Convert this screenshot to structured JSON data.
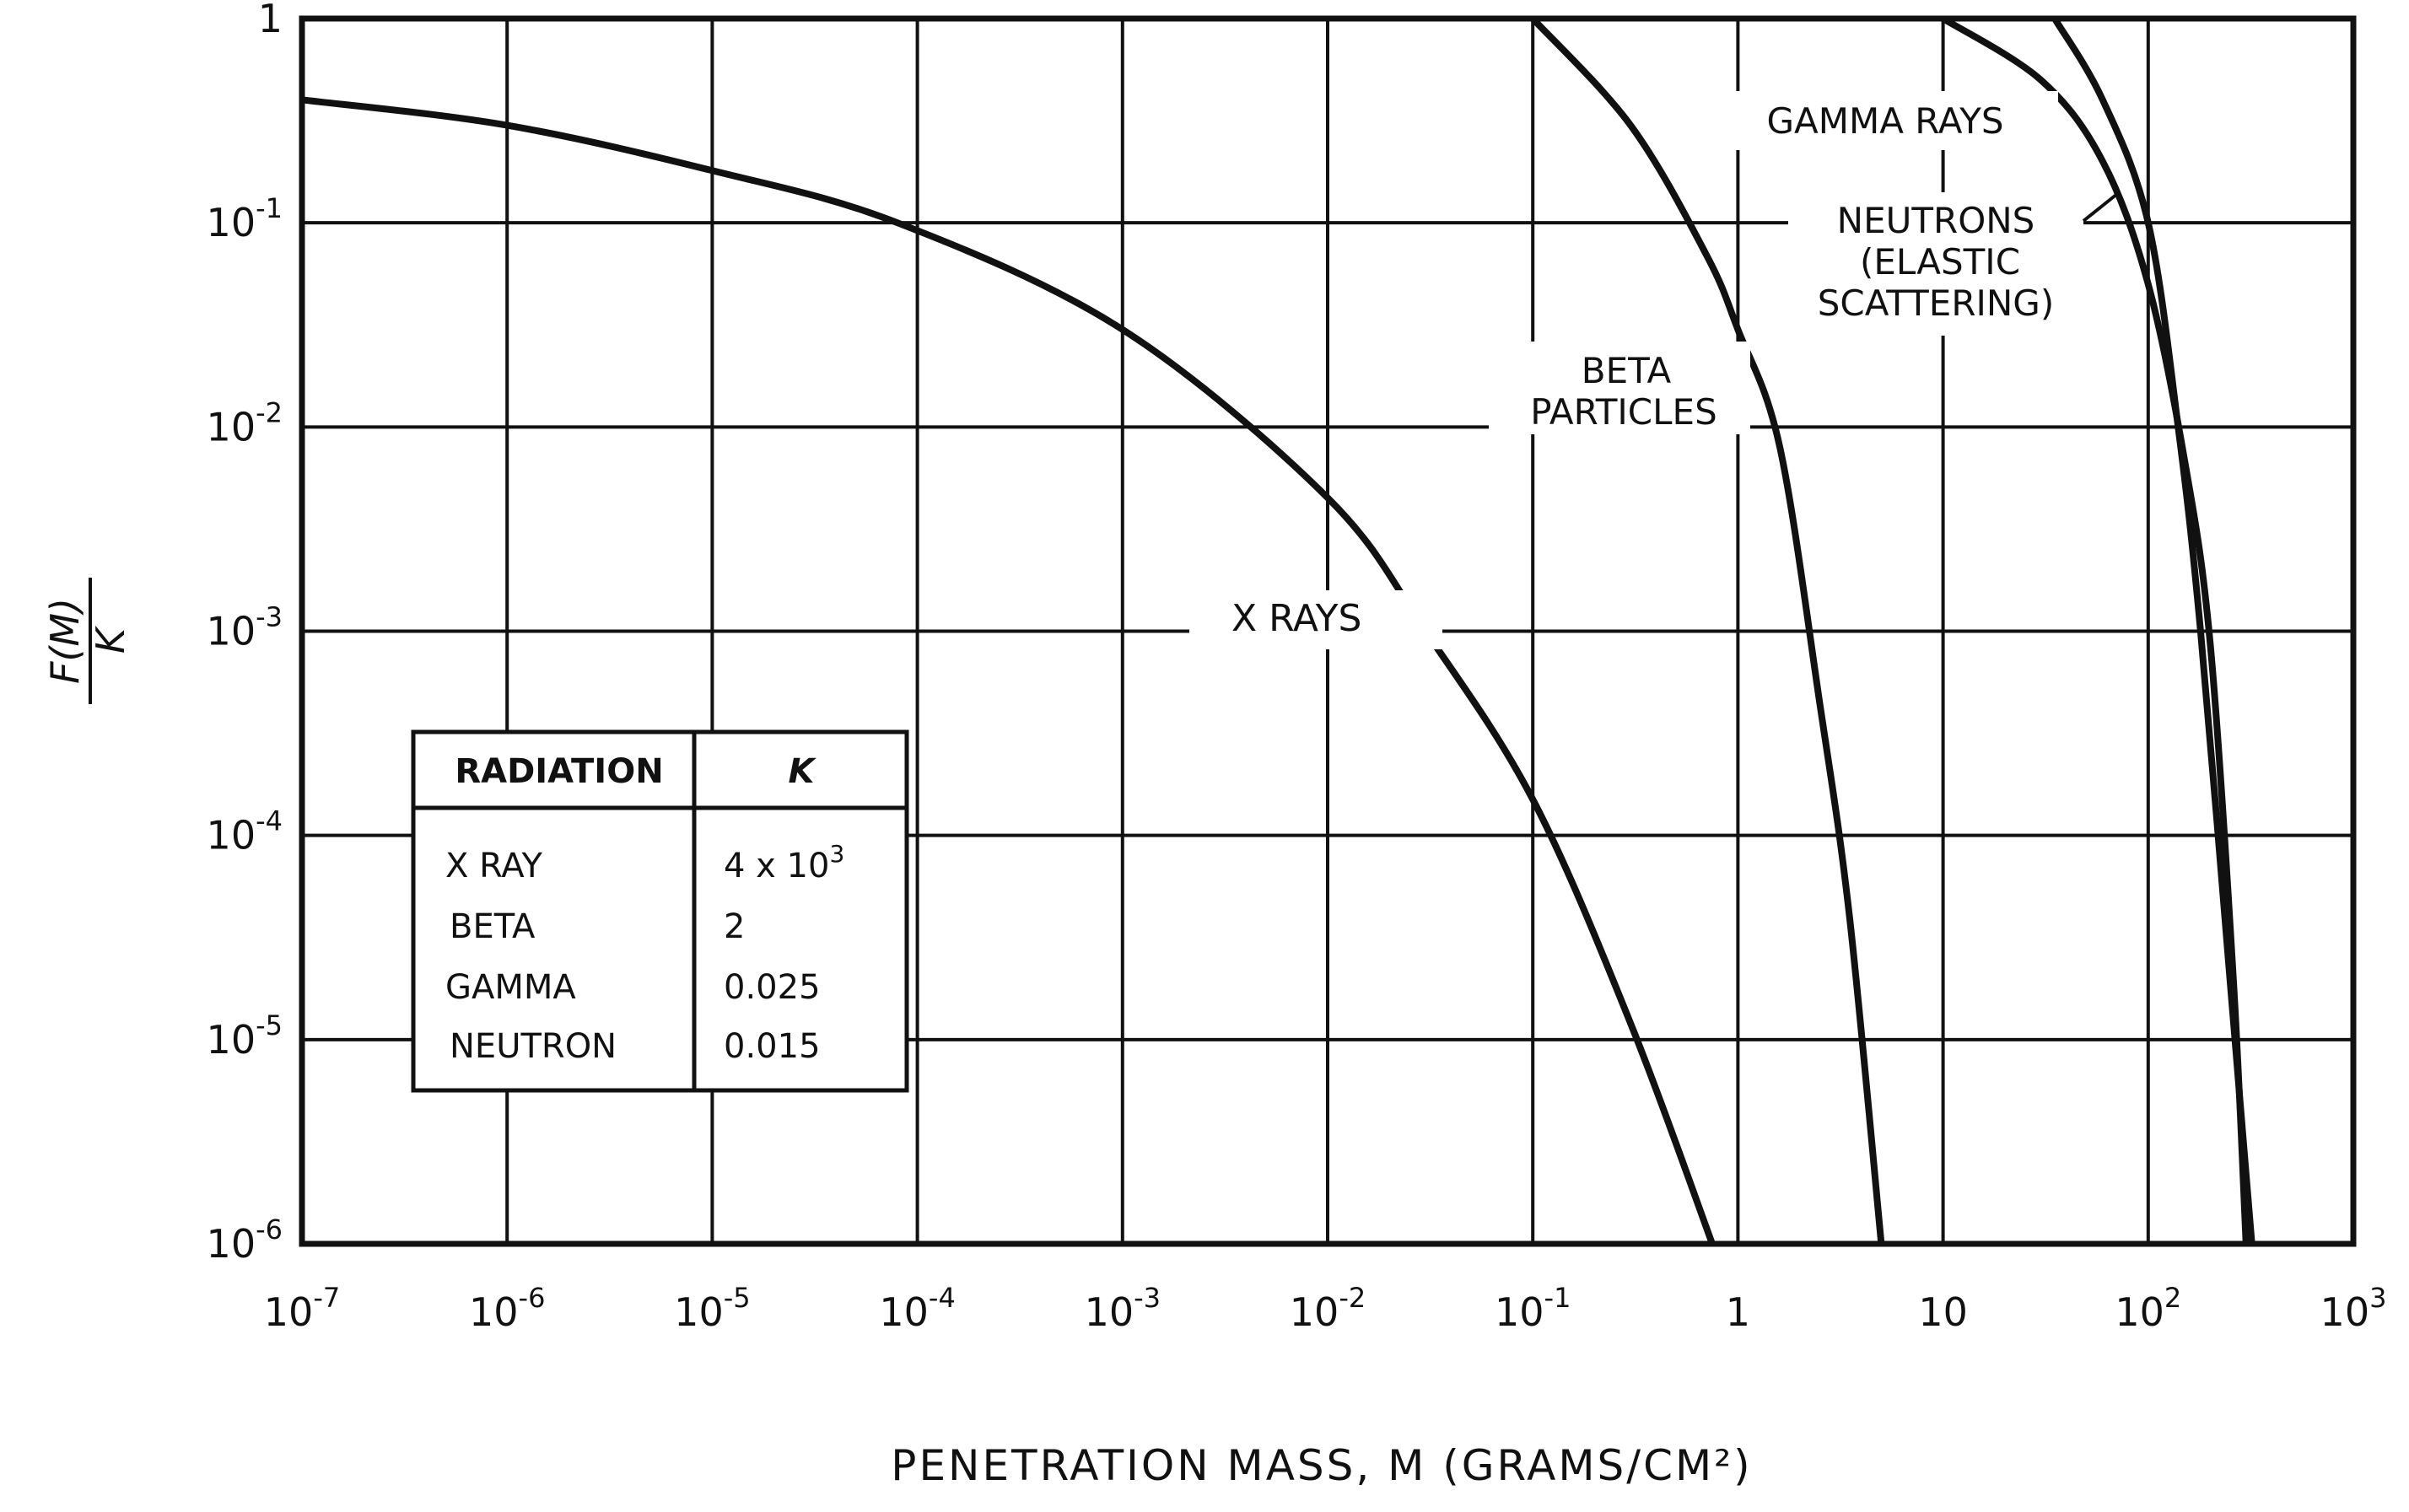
{
  "chart_data": {
    "type": "line",
    "title": "",
    "xlabel": "PENETRATION MASS, M (GRAMS/CM²)",
    "ylabel": "F(M) / K",
    "ylabel_numerator": "F(M)",
    "ylabel_denominator": "K",
    "x_scale": "log",
    "y_scale": "log",
    "xlim": [
      1e-07,
      1000
    ],
    "ylim": [
      1e-06,
      1
    ],
    "grid": true,
    "x_ticks": [
      {
        "value": 1e-07,
        "base": "10",
        "exp": "-7"
      },
      {
        "value": 1e-06,
        "base": "10",
        "exp": "-6"
      },
      {
        "value": 1e-05,
        "base": "10",
        "exp": "-5"
      },
      {
        "value": 0.0001,
        "base": "10",
        "exp": "-4"
      },
      {
        "value": 0.001,
        "base": "10",
        "exp": "-3"
      },
      {
        "value": 0.01,
        "base": "10",
        "exp": "-2"
      },
      {
        "value": 0.1,
        "base": "10",
        "exp": "-1"
      },
      {
        "value": 1,
        "base": "1",
        "exp": ""
      },
      {
        "value": 10,
        "base": "10",
        "exp": ""
      },
      {
        "value": 100,
        "base": "10",
        "exp": "2"
      },
      {
        "value": 1000,
        "base": "10",
        "exp": "3"
      }
    ],
    "y_ticks": [
      {
        "value": 1,
        "base": "1",
        "exp": ""
      },
      {
        "value": 0.1,
        "base": "10",
        "exp": "-1"
      },
      {
        "value": 0.01,
        "base": "10",
        "exp": "-2"
      },
      {
        "value": 0.001,
        "base": "10",
        "exp": "-3"
      },
      {
        "value": 0.0001,
        "base": "10",
        "exp": "-4"
      },
      {
        "value": 1e-05,
        "base": "10",
        "exp": "-5"
      },
      {
        "value": 1e-06,
        "base": "10",
        "exp": "-6"
      }
    ],
    "series": [
      {
        "name": "X RAYS",
        "x": [
          1e-07,
          1e-06,
          1e-05,
          8e-05,
          0.001,
          0.01,
          0.03,
          0.1,
          0.3,
          0.75
        ],
        "y": [
          0.4,
          0.3,
          0.18,
          0.1,
          0.03,
          0.0045,
          0.001,
          0.00015,
          1.2e-05,
          1e-06
        ]
      },
      {
        "name": "BETA PARTICLES",
        "x": [
          0.1,
          0.3,
          0.7,
          1.0,
          1.6,
          2.5,
          3.5,
          5.0
        ],
        "y": [
          1.0,
          0.3,
          0.07,
          0.03,
          0.008,
          0.00045,
          4e-05,
          1e-06
        ]
      },
      {
        "name": "GAMMA RAYS",
        "x": [
          10,
          30,
          60,
          100,
          150,
          200,
          260,
          300
        ],
        "y": [
          1.0,
          0.5,
          0.2,
          0.05,
          0.007,
          0.0009,
          2e-05,
          1e-06
        ]
      },
      {
        "name": "NEUTRONS (ELASTIC SCATTERING)",
        "x": [
          35,
          60,
          100,
          140,
          180,
          250,
          320
        ],
        "y": [
          1.0,
          0.4,
          0.1,
          0.01,
          0.001,
          2e-05,
          1e-06
        ]
      }
    ],
    "annotations": {
      "x_rays": "X RAYS",
      "beta_line1": "BETA",
      "beta_line2": "PARTICLES",
      "gamma": "GAMMA RAYS",
      "neutrons_line1": "NEUTRONS",
      "neutrons_line2": "(ELASTIC",
      "neutrons_line3": "SCATTERING)"
    },
    "inset_table": {
      "headers": [
        "RADIATION",
        "K"
      ],
      "rows": [
        {
          "radiation": "X RAY",
          "k": "4 x 10",
          "k_exp": "3"
        },
        {
          "radiation": "BETA",
          "k": "2",
          "k_exp": ""
        },
        {
          "radiation": "GAMMA",
          "k": "0.025",
          "k_exp": ""
        },
        {
          "radiation": "NEUTRON",
          "k": "0.015",
          "k_exp": ""
        }
      ]
    }
  }
}
